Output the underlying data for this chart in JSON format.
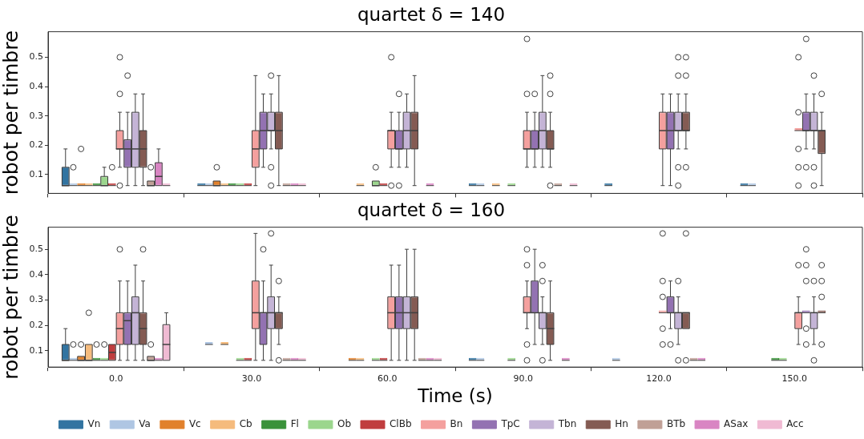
{
  "chart_data": [
    {
      "type": "box",
      "title": "quartet δ = 140",
      "ylabel": "robot per timbre",
      "categories": [
        "0.0",
        "30.0",
        "60.0",
        "90.0",
        "120.0",
        "150.0"
      ],
      "ylim": [
        0.036,
        0.587
      ],
      "yticks": [
        0.1,
        0.2,
        0.3,
        0.4,
        0.5
      ],
      "tick_labels": "y",
      "series": [
        {
          "color": "#3274a1",
          "boxes": [
            {
              "low": 0.0625,
              "q1": 0.0625,
              "median": 0.0625,
              "q3": 0.125,
              "high": 0.1875
            },
            {
              "low": 0.0625,
              "q1": 0.0625,
              "median": 0.0625,
              "q3": 0.0625,
              "high": 0.0625
            },
            null,
            {
              "low": 0.0625,
              "q1": 0.0625,
              "median": 0.0625,
              "q3": 0.0625,
              "high": 0.0625
            },
            {
              "low": 0.0625,
              "q1": 0.0625,
              "median": 0.0625,
              "q3": 0.0625,
              "high": 0.0625
            },
            {
              "low": 0.0625,
              "q1": 0.0625,
              "median": 0.0625,
              "q3": 0.0625,
              "high": 0.0625
            }
          ]
        },
        {
          "color": "#afc6e3",
          "boxes": [
            {
              "low": 0.0625,
              "q1": 0.0625,
              "median": 0.0625,
              "q3": 0.0625,
              "high": 0.0625,
              "outliers": [
                0.125
              ]
            },
            {
              "low": 0.0625,
              "q1": 0.0625,
              "median": 0.0625,
              "q3": 0.0625,
              "high": 0.0625
            },
            null,
            {
              "low": 0.0625,
              "q1": 0.0625,
              "median": 0.0625,
              "q3": 0.0625,
              "high": 0.0625
            },
            null,
            {
              "low": 0.0625,
              "q1": 0.0625,
              "median": 0.0625,
              "q3": 0.0625,
              "high": 0.0625
            }
          ]
        },
        {
          "color": "#e1812c",
          "boxes": [
            {
              "low": 0.0625,
              "q1": 0.0625,
              "median": 0.0625,
              "q3": 0.0625,
              "high": 0.0625,
              "outliers": [
                0.1875
              ]
            },
            {
              "low": 0.0625,
              "q1": 0.0625,
              "median": 0.0625,
              "q3": 0.078125,
              "high": 0.078125,
              "outliers": [
                0.125
              ]
            },
            null,
            null,
            null,
            null
          ]
        },
        {
          "color": "#f5bb7d",
          "boxes": [
            {
              "low": 0.0625,
              "q1": 0.0625,
              "median": 0.0625,
              "q3": 0.0625,
              "high": 0.0625
            },
            {
              "low": 0.0625,
              "q1": 0.0625,
              "median": 0.0625,
              "q3": 0.0625,
              "high": 0.0625
            },
            {
              "low": 0.0625,
              "q1": 0.0625,
              "median": 0.0625,
              "q3": 0.0625,
              "high": 0.0625
            },
            {
              "low": 0.0625,
              "q1": 0.0625,
              "median": 0.0625,
              "q3": 0.0625,
              "high": 0.0625
            },
            null,
            null
          ]
        },
        {
          "color": "#3a923a",
          "boxes": [
            {
              "low": 0.0625,
              "q1": 0.0625,
              "median": 0.0625,
              "q3": 0.0625,
              "high": 0.0625
            },
            {
              "low": 0.0625,
              "q1": 0.0625,
              "median": 0.0625,
              "q3": 0.0625,
              "high": 0.0625
            },
            null,
            null,
            null,
            null
          ]
        },
        {
          "color": "#9bd68d",
          "boxes": [
            {
              "low": 0.0625,
              "q1": 0.0625,
              "median": 0.0625,
              "q3": 0.09375,
              "high": 0.125
            },
            {
              "low": 0.0625,
              "q1": 0.0625,
              "median": 0.0625,
              "q3": 0.0625,
              "high": 0.0625
            },
            {
              "low": 0.0625,
              "q1": 0.0625,
              "median": 0.0625,
              "q3": 0.078125,
              "high": 0.078125,
              "outliers": [
                0.125
              ]
            },
            {
              "low": 0.0625,
              "q1": 0.0625,
              "median": 0.0625,
              "q3": 0.0625,
              "high": 0.0625
            },
            null,
            null
          ]
        },
        {
          "color": "#c03d3e",
          "boxes": [
            {
              "low": 0.0625,
              "q1": 0.0625,
              "median": 0.0625,
              "q3": 0.0625,
              "high": 0.0625,
              "outliers": [
                0.125
              ]
            },
            {
              "low": 0.0625,
              "q1": 0.0625,
              "median": 0.0625,
              "q3": 0.0625,
              "high": 0.0625
            },
            {
              "low": 0.0625,
              "q1": 0.0625,
              "median": 0.0625,
              "q3": 0.0625,
              "high": 0.0625
            },
            null,
            null,
            null
          ]
        },
        {
          "color": "#f4a09e",
          "boxes": [
            {
              "low": 0.125,
              "q1": 0.1875,
              "median": 0.1875,
              "q3": 0.25,
              "high": 0.3125,
              "outliers": [
                0.0625,
                0.375,
                0.5
              ]
            },
            {
              "low": 0.0625,
              "q1": 0.125,
              "median": 0.1875,
              "q3": 0.25,
              "high": 0.4375
            },
            {
              "low": 0.125,
              "q1": 0.1875,
              "median": 0.25,
              "q3": 0.25,
              "high": 0.3125,
              "outliers": [
                0.0625,
                0.5
              ]
            },
            {
              "low": 0.125,
              "q1": 0.1875,
              "median": 0.1875,
              "q3": 0.25,
              "high": 0.3125,
              "outliers": [
                0.375,
                0.5625
              ]
            },
            {
              "low": 0.0625,
              "q1": 0.1875,
              "median": 0.25,
              "q3": 0.3125,
              "high": 0.375
            },
            {
              "low": 0.25,
              "q1": 0.25,
              "median": 0.25,
              "q3": 0.25,
              "high": 0.25,
              "outliers": [
                0.0625,
                0.125,
                0.1875,
                0.3125,
                0.5
              ]
            }
          ]
        },
        {
          "color": "#9372b2",
          "boxes": [
            {
              "low": 0.0625,
              "q1": 0.125,
              "median": 0.1875,
              "q3": 0.21875,
              "high": 0.3125,
              "outliers": [
                0.4375
              ]
            },
            {
              "low": 0.125,
              "q1": 0.1875,
              "median": 0.25,
              "q3": 0.3125,
              "high": 0.375
            },
            {
              "low": 0.125,
              "q1": 0.1875,
              "median": 0.1875,
              "q3": 0.25,
              "high": 0.3125,
              "outliers": [
                0.0625,
                0.375
              ]
            },
            {
              "low": 0.125,
              "q1": 0.1875,
              "median": 0.1875,
              "q3": 0.25,
              "high": 0.3125,
              "outliers": [
                0.375
              ]
            },
            {
              "low": 0.0625,
              "q1": 0.1875,
              "median": 0.25,
              "q3": 0.3125,
              "high": 0.375
            },
            {
              "low": 0.1875,
              "q1": 0.25,
              "median": 0.25,
              "q3": 0.3125,
              "high": 0.375,
              "outliers": [
                0.125,
                0.5625
              ]
            }
          ]
        },
        {
          "color": "#c4b4d6",
          "boxes": [
            {
              "low": 0.0625,
              "q1": 0.125,
              "median": 0.1875,
              "q3": 0.3125,
              "high": 0.375
            },
            {
              "low": 0.1875,
              "q1": 0.25,
              "median": 0.25,
              "q3": 0.3125,
              "high": 0.375,
              "outliers": [
                0.0625,
                0.125,
                0.4375
              ]
            },
            {
              "low": 0.125,
              "q1": 0.1875,
              "median": 0.25,
              "q3": 0.3125,
              "high": 0.375
            },
            {
              "low": 0.125,
              "q1": 0.1875,
              "median": 0.25,
              "q3": 0.3125,
              "high": 0.4375
            },
            {
              "low": 0.1875,
              "q1": 0.25,
              "median": 0.25,
              "q3": 0.3125,
              "high": 0.375,
              "outliers": [
                0.0625,
                0.125,
                0.4375,
                0.5
              ]
            },
            {
              "low": 0.1875,
              "q1": 0.25,
              "median": 0.25,
              "q3": 0.3125,
              "high": 0.375,
              "outliers": [
                0.0625,
                0.125,
                0.4375
              ]
            }
          ]
        },
        {
          "color": "#845b53",
          "boxes": [
            {
              "low": 0.0625,
              "q1": 0.125,
              "median": 0.1875,
              "q3": 0.25,
              "high": 0.375
            },
            {
              "low": 0.0625,
              "q1": 0.1875,
              "median": 0.25,
              "q3": 0.3125,
              "high": 0.4375
            },
            {
              "low": 0.0625,
              "q1": 0.1875,
              "median": 0.25,
              "q3": 0.3125,
              "high": 0.4375
            },
            {
              "low": 0.125,
              "q1": 0.1875,
              "median": 0.1875,
              "q3": 0.25,
              "high": 0.3125,
              "outliers": [
                0.0625,
                0.375,
                0.4375
              ]
            },
            {
              "low": 0.1875,
              "q1": 0.25,
              "median": 0.25,
              "q3": 0.3125,
              "high": 0.375,
              "outliers": [
                0.125,
                0.4375,
                0.5
              ]
            },
            {
              "low": 0.0625,
              "q1": 0.171875,
              "median": 0.25,
              "q3": 0.25,
              "high": 0.3125,
              "outliers": [
                0.375
              ]
            }
          ]
        },
        {
          "color": "#c0a096",
          "boxes": [
            {
              "low": 0.0625,
              "q1": 0.0625,
              "median": 0.0625,
              "q3": 0.078125,
              "high": 0.078125,
              "outliers": [
                0.125
              ]
            },
            {
              "low": 0.0625,
              "q1": 0.0625,
              "median": 0.0625,
              "q3": 0.0625,
              "high": 0.0625
            },
            null,
            {
              "low": 0.0625,
              "q1": 0.0625,
              "median": 0.0625,
              "q3": 0.0625,
              "high": 0.0625
            },
            null,
            null
          ]
        },
        {
          "color": "#d985c3",
          "boxes": [
            {
              "low": 0.0625,
              "q1": 0.0625,
              "median": 0.09375,
              "q3": 0.140625,
              "high": 0.1875
            },
            {
              "low": 0.0625,
              "q1": 0.0625,
              "median": 0.0625,
              "q3": 0.0625,
              "high": 0.0625
            },
            {
              "low": 0.0625,
              "q1": 0.0625,
              "median": 0.0625,
              "q3": 0.0625,
              "high": 0.0625
            },
            null,
            null,
            null
          ]
        },
        {
          "color": "#f0bad3",
          "boxes": [
            {
              "low": 0.0625,
              "q1": 0.0625,
              "median": 0.0625,
              "q3": 0.0625,
              "high": 0.0625
            },
            {
              "low": 0.0625,
              "q1": 0.0625,
              "median": 0.0625,
              "q3": 0.0625,
              "high": 0.0625
            },
            null,
            {
              "low": 0.0625,
              "q1": 0.0625,
              "median": 0.0625,
              "q3": 0.0625,
              "high": 0.0625
            },
            null,
            null
          ]
        }
      ]
    },
    {
      "type": "box",
      "title": "quartet δ = 160",
      "ylabel": "robot per timbre",
      "xlabel": "Time (s)",
      "categories": [
        "0.0",
        "30.0",
        "60.0",
        "90.0",
        "120.0",
        "150.0"
      ],
      "ylim": [
        0.036,
        0.587
      ],
      "yticks": [
        0.1,
        0.2,
        0.3,
        0.4,
        0.5
      ],
      "legend": "bottom",
      "series": [
        {
          "name": "Vn",
          "color": "#3274a1",
          "boxes": [
            {
              "low": 0.0625,
              "q1": 0.0625,
              "median": 0.0625,
              "q3": 0.125,
              "high": 0.1875
            },
            null,
            null,
            {
              "low": 0.0625,
              "q1": 0.0625,
              "median": 0.0625,
              "q3": 0.0625,
              "high": 0.0625
            },
            null,
            null
          ]
        },
        {
          "name": "Va",
          "color": "#afc6e3",
          "boxes": [
            {
              "low": 0.0625,
              "q1": 0.0625,
              "median": 0.0625,
              "q3": 0.0625,
              "high": 0.0625,
              "outliers": [
                0.125
              ]
            },
            {
              "low": 0.125,
              "q1": 0.125,
              "median": 0.125,
              "q3": 0.125,
              "high": 0.125
            },
            null,
            {
              "low": 0.0625,
              "q1": 0.0625,
              "median": 0.0625,
              "q3": 0.0625,
              "high": 0.0625
            },
            {
              "low": 0.0625,
              "q1": 0.0625,
              "median": 0.0625,
              "q3": 0.0625,
              "high": 0.0625
            },
            null
          ]
        },
        {
          "name": "Vc",
          "color": "#e1812c",
          "boxes": [
            {
              "low": 0.0625,
              "q1": 0.0625,
              "median": 0.0625,
              "q3": 0.078125,
              "high": 0.078125,
              "outliers": [
                0.125
              ]
            },
            null,
            {
              "low": 0.0625,
              "q1": 0.0625,
              "median": 0.0625,
              "q3": 0.0625,
              "high": 0.0625
            },
            null,
            null,
            null
          ]
        },
        {
          "name": "Cb",
          "color": "#f5bb7d",
          "boxes": [
            {
              "low": 0.0625,
              "q1": 0.0625,
              "median": 0.0625,
              "q3": 0.125,
              "high": 0.125,
              "outliers": [
                0.25
              ]
            },
            {
              "low": 0.125,
              "q1": 0.125,
              "median": 0.125,
              "q3": 0.125,
              "high": 0.125
            },
            {
              "low": 0.0625,
              "q1": 0.0625,
              "median": 0.0625,
              "q3": 0.0625,
              "high": 0.0625
            },
            null,
            null,
            null
          ]
        },
        {
          "name": "Fl",
          "color": "#3a923a",
          "boxes": [
            {
              "low": 0.0625,
              "q1": 0.0625,
              "median": 0.0625,
              "q3": 0.0625,
              "high": 0.0625,
              "outliers": [
                0.125
              ]
            },
            null,
            null,
            null,
            null,
            {
              "low": 0.0625,
              "q1": 0.0625,
              "median": 0.0625,
              "q3": 0.0625,
              "high": 0.0625
            }
          ]
        },
        {
          "name": "Ob",
          "color": "#9bd68d",
          "boxes": [
            {
              "low": 0.0625,
              "q1": 0.0625,
              "median": 0.0625,
              "q3": 0.0625,
              "high": 0.0625,
              "outliers": [
                0.125
              ]
            },
            {
              "low": 0.0625,
              "q1": 0.0625,
              "median": 0.0625,
              "q3": 0.0625,
              "high": 0.0625
            },
            {
              "low": 0.0625,
              "q1": 0.0625,
              "median": 0.0625,
              "q3": 0.0625,
              "high": 0.0625
            },
            {
              "low": 0.0625,
              "q1": 0.0625,
              "median": 0.0625,
              "q3": 0.0625,
              "high": 0.0625
            },
            null,
            {
              "low": 0.0625,
              "q1": 0.0625,
              "median": 0.0625,
              "q3": 0.0625,
              "high": 0.0625
            }
          ]
        },
        {
          "name": "ClBb",
          "color": "#c03d3e",
          "boxes": [
            {
              "low": 0.0625,
              "q1": 0.0625,
              "median": 0.09375,
              "q3": 0.125,
              "high": 0.125
            },
            {
              "low": 0.0625,
              "q1": 0.0625,
              "median": 0.0625,
              "q3": 0.0625,
              "high": 0.0625
            },
            {
              "low": 0.0625,
              "q1": 0.0625,
              "median": 0.0625,
              "q3": 0.0625,
              "high": 0.0625
            },
            null,
            null,
            null
          ]
        },
        {
          "name": "Bn",
          "color": "#f4a09e",
          "boxes": [
            {
              "low": 0.0625,
              "q1": 0.125,
              "median": 0.1875,
              "q3": 0.25,
              "high": 0.375,
              "outliers": [
                0.5
              ]
            },
            {
              "low": 0.0625,
              "q1": 0.1875,
              "median": 0.25,
              "q3": 0.375,
              "high": 0.5625
            },
            {
              "low": 0.0625,
              "q1": 0.1875,
              "median": 0.25,
              "q3": 0.3125,
              "high": 0.4375
            },
            {
              "low": 0.1875,
              "q1": 0.25,
              "median": 0.25,
              "q3": 0.3125,
              "high": 0.375,
              "outliers": [
                0.0625,
                0.125,
                0.4375,
                0.5
              ]
            },
            {
              "low": 0.25,
              "q1": 0.25,
              "median": 0.25,
              "q3": 0.25,
              "high": 0.25,
              "outliers": [
                0.125,
                0.1875,
                0.3125,
                0.375,
                0.5625
              ]
            },
            {
              "low": 0.125,
              "q1": 0.1875,
              "median": 0.25,
              "q3": 0.25,
              "high": 0.3125,
              "outliers": [
                0.4375
              ]
            }
          ]
        },
        {
          "name": "TpC",
          "color": "#9372b2",
          "boxes": [
            {
              "low": 0.0625,
              "q1": 0.125,
              "median": 0.21875,
              "q3": 0.25,
              "high": 0.375
            },
            {
              "low": 0.0625,
              "q1": 0.125,
              "median": 0.25,
              "q3": 0.25,
              "high": 0.375,
              "outliers": [
                0.5
              ]
            },
            {
              "low": 0.0625,
              "q1": 0.1875,
              "median": 0.25,
              "q3": 0.3125,
              "high": 0.4375
            },
            {
              "low": 0.125,
              "q1": 0.25,
              "median": 0.25,
              "q3": 0.375,
              "high": 0.5
            },
            {
              "low": 0.1875,
              "q1": 0.25,
              "median": 0.25,
              "q3": 0.3125,
              "high": 0.375,
              "outliers": [
                0.125
              ]
            },
            {
              "low": 0.25,
              "q1": 0.25,
              "median": 0.25,
              "q3": 0.25,
              "high": 0.25,
              "outliers": [
                0.125,
                0.1875,
                0.375,
                0.4375,
                0.5
              ]
            }
          ]
        },
        {
          "name": "Tbn",
          "color": "#c4b4d6",
          "boxes": [
            {
              "low": 0.0625,
              "q1": 0.125,
              "median": 0.25,
              "q3": 0.3125,
              "high": 0.4375
            },
            {
              "low": 0.0625,
              "q1": 0.1875,
              "median": 0.25,
              "q3": 0.3125,
              "high": 0.4375,
              "outliers": [
                0.5625
              ]
            },
            {
              "low": 0.0625,
              "q1": 0.1875,
              "median": 0.25,
              "q3": 0.3125,
              "high": 0.5
            },
            {
              "low": 0.125,
              "q1": 0.1875,
              "median": 0.25,
              "q3": 0.25,
              "high": 0.3125,
              "outliers": [
                0.0625,
                0.375,
                0.4375
              ]
            },
            {
              "low": 0.125,
              "q1": 0.1875,
              "median": 0.25,
              "q3": 0.25,
              "high": 0.3125,
              "outliers": [
                0.0625,
                0.375
              ]
            },
            {
              "low": 0.125,
              "q1": 0.1875,
              "median": 0.25,
              "q3": 0.25,
              "high": 0.3125,
              "outliers": [
                0.0625,
                0.375
              ]
            }
          ]
        },
        {
          "name": "Hn",
          "color": "#845b53",
          "boxes": [
            {
              "low": 0.0625,
              "q1": 0.125,
              "median": 0.1875,
              "q3": 0.25,
              "high": 0.375,
              "outliers": [
                0.5
              ]
            },
            {
              "low": 0.125,
              "q1": 0.1875,
              "median": 0.25,
              "q3": 0.25,
              "high": 0.3125,
              "outliers": [
                0.0625,
                0.375
              ]
            },
            {
              "low": 0.0625,
              "q1": 0.1875,
              "median": 0.25,
              "q3": 0.3125,
              "high": 0.5
            },
            {
              "low": 0.0625,
              "q1": 0.125,
              "median": 0.1875,
              "q3": 0.25,
              "high": 0.375
            },
            {
              "low": 0.1875,
              "q1": 0.1875,
              "median": 0.25,
              "q3": 0.25,
              "high": 0.25,
              "outliers": [
                0.0625,
                0.5625
              ]
            },
            {
              "low": 0.25,
              "q1": 0.25,
              "median": 0.25,
              "q3": 0.25,
              "high": 0.25,
              "outliers": [
                0.125,
                0.3125,
                0.375,
                0.4375
              ]
            }
          ]
        },
        {
          "name": "BTb",
          "color": "#c0a096",
          "boxes": [
            {
              "low": 0.0625,
              "q1": 0.0625,
              "median": 0.0625,
              "q3": 0.078125,
              "high": 0.078125,
              "outliers": [
                0.125
              ]
            },
            {
              "low": 0.0625,
              "q1": 0.0625,
              "median": 0.0625,
              "q3": 0.0625,
              "high": 0.0625
            },
            {
              "low": 0.0625,
              "q1": 0.0625,
              "median": 0.0625,
              "q3": 0.0625,
              "high": 0.0625
            },
            null,
            {
              "low": 0.0625,
              "q1": 0.0625,
              "median": 0.0625,
              "q3": 0.0625,
              "high": 0.0625
            },
            null
          ]
        },
        {
          "name": "ASax",
          "color": "#d985c3",
          "boxes": [
            {
              "low": 0.0625,
              "q1": 0.0625,
              "median": 0.0625,
              "q3": 0.0625,
              "high": 0.0625
            },
            {
              "low": 0.0625,
              "q1": 0.0625,
              "median": 0.0625,
              "q3": 0.0625,
              "high": 0.0625
            },
            {
              "low": 0.0625,
              "q1": 0.0625,
              "median": 0.0625,
              "q3": 0.0625,
              "high": 0.0625
            },
            {
              "low": 0.0625,
              "q1": 0.0625,
              "median": 0.0625,
              "q3": 0.0625,
              "high": 0.0625
            },
            {
              "low": 0.0625,
              "q1": 0.0625,
              "median": 0.0625,
              "q3": 0.0625,
              "high": 0.0625
            },
            null
          ]
        },
        {
          "name": "Acc",
          "color": "#f0bad3",
          "boxes": [
            {
              "low": 0.0625,
              "q1": 0.0625,
              "median": 0.125,
              "q3": 0.203125,
              "high": 0.25
            },
            {
              "low": 0.0625,
              "q1": 0.0625,
              "median": 0.0625,
              "q3": 0.0625,
              "high": 0.0625
            },
            {
              "low": 0.0625,
              "q1": 0.0625,
              "median": 0.0625,
              "q3": 0.0625,
              "high": 0.0625
            },
            null,
            null,
            null
          ]
        }
      ]
    }
  ]
}
